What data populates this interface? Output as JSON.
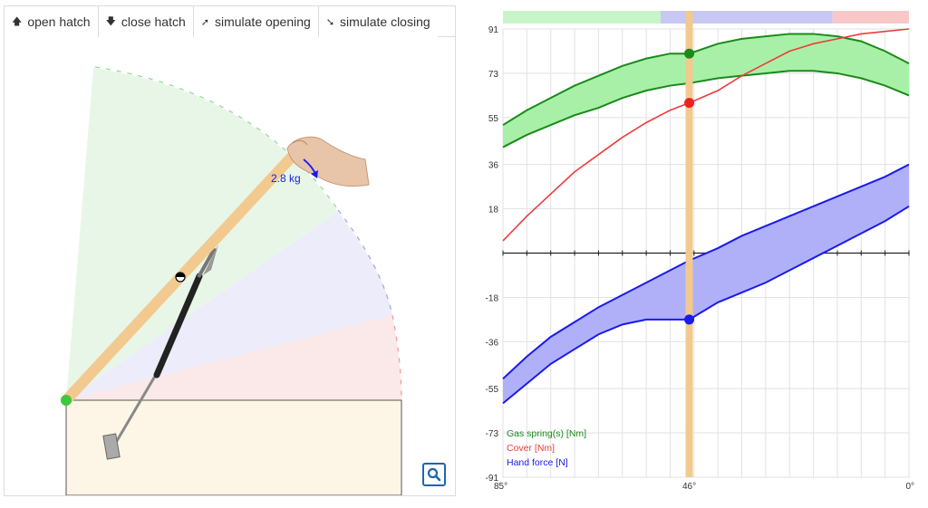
{
  "toolbar": {
    "buttons": [
      {
        "label": "open hatch",
        "icon": "arrow-up-icon"
      },
      {
        "label": "close hatch",
        "icon": "arrow-down-icon"
      },
      {
        "label": "simulate opening",
        "icon": "arrow-curve-up-icon"
      },
      {
        "label": "simulate closing",
        "icon": "arrow-curve-down-icon"
      }
    ]
  },
  "scene": {
    "weight_label": "2.8 kg",
    "colors": {
      "lid": "#f2c98f",
      "base": "#fdf6e6",
      "green_zone": "#e8f6e8",
      "blue_zone": "#ececfa",
      "red_zone": "#fbe8e8",
      "hinge": "#3cc83c"
    }
  },
  "zoom_button": {
    "icon": "magnifier-icon"
  },
  "chart_data": {
    "type": "line",
    "x": [
      85,
      80,
      75,
      70,
      65,
      60,
      55,
      50,
      46,
      40,
      35,
      30,
      25,
      20,
      15,
      10,
      5,
      0
    ],
    "xlim": [
      85,
      0
    ],
    "ylim": [
      -91,
      91
    ],
    "x_ticks": [
      "85°",
      "46°",
      "0°"
    ],
    "y_ticks": [
      91,
      73,
      55,
      36,
      18,
      -18,
      -36,
      -55,
      -73,
      -91
    ],
    "cursor_x": 46,
    "cursor_values": {
      "gas_upper": 81,
      "cover": 61,
      "hand_lower": -27
    },
    "series": [
      {
        "name": "Gas spring(s) [Nm]",
        "color": "#1a8a1a",
        "fill": "#a8f0a8",
        "upper": [
          52,
          58,
          63,
          68,
          72,
          76,
          79,
          81,
          81,
          85,
          87,
          88,
          89,
          89,
          88,
          86,
          82,
          77
        ],
        "lower": [
          43,
          48,
          52,
          56,
          59,
          63,
          66,
          68,
          69,
          71,
          72,
          73,
          74,
          74,
          73,
          71,
          68,
          64
        ]
      },
      {
        "name": "Cover [Nm]",
        "color": "#ee3b3b",
        "values": [
          5,
          15,
          24,
          33,
          40,
          47,
          53,
          58,
          61,
          66,
          72,
          77,
          82,
          85,
          87,
          89,
          90,
          91
        ]
      },
      {
        "name": "Hand force [N]",
        "color": "#1a1aee",
        "fill": "#b0b0f8",
        "upper": [
          -51,
          -42,
          -34,
          -28,
          -22,
          -17,
          -12,
          -7,
          -3,
          2,
          7,
          11,
          15,
          19,
          23,
          27,
          31,
          36
        ],
        "lower": [
          -61,
          -53,
          -45,
          -39,
          -33,
          -29,
          -27,
          -27,
          -27,
          -20,
          -16,
          -12,
          -7,
          -2,
          3,
          8,
          13,
          19
        ]
      }
    ],
    "phase_bar": [
      {
        "from": 85,
        "to": 52,
        "color": "#c8f5c8"
      },
      {
        "from": 52,
        "to": 16,
        "color": "#c8c8f5"
      },
      {
        "from": 16,
        "to": 0,
        "color": "#f8c8c8"
      }
    ],
    "grid": true,
    "legend": "bottom-left"
  }
}
